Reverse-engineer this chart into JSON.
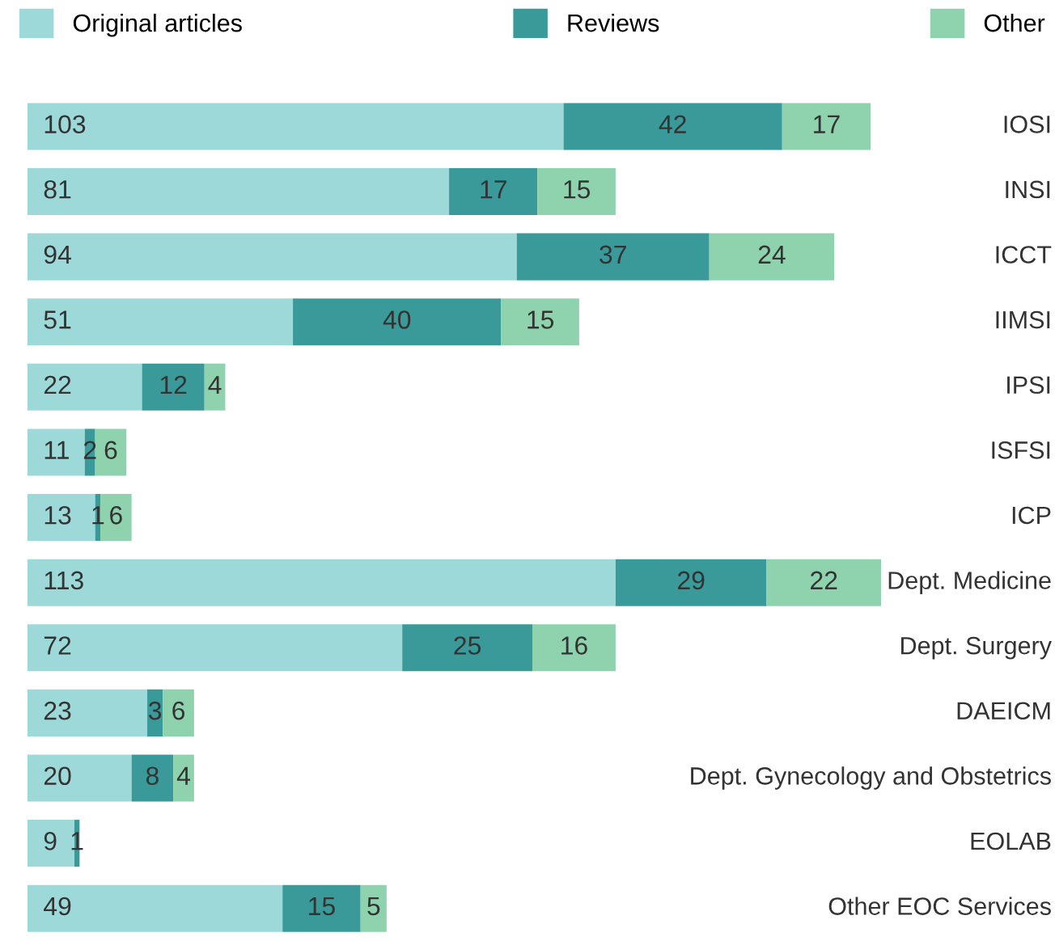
{
  "chart_data": {
    "type": "bar",
    "orientation": "horizontal",
    "stacked": true,
    "data_labels": true,
    "legend": "top",
    "categories": [
      "IOSI",
      "INSI",
      "ICCT",
      "IIMSI",
      "IPSI",
      "ISFSI",
      "ICP",
      "Dept. Medicine",
      "Dept. Surgery",
      "DAEICM",
      "Dept. Gynecology and Obstetrics",
      "EOLAB",
      "Other EOC Services"
    ],
    "series": [
      {
        "name": "Original articles",
        "color": "#9dd9d9",
        "values": [
          103,
          81,
          94,
          51,
          22,
          11,
          13,
          113,
          72,
          23,
          20,
          9,
          49
        ]
      },
      {
        "name": "Reviews",
        "color": "#3a9a9a",
        "values": [
          42,
          17,
          37,
          40,
          12,
          2,
          1,
          29,
          25,
          3,
          8,
          1,
          15
        ]
      },
      {
        "name": "Other",
        "color": "#8fd3ae",
        "values": [
          17,
          15,
          24,
          15,
          4,
          6,
          6,
          22,
          16,
          6,
          4,
          null,
          5
        ]
      }
    ]
  }
}
